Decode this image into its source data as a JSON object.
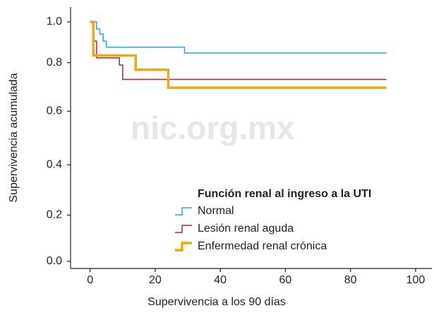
{
  "chart_data": {
    "type": "line",
    "step": "post",
    "xlabel": "Supervivencia a los 90 días",
    "ylabel": "Supervivencia acumulada",
    "watermark": "nic.org.mx",
    "legend_title": "Función renal al ingreso a la UTI",
    "legend": "lower right",
    "xlim": [
      -6,
      105
    ],
    "xticks": [
      0,
      20,
      40,
      60,
      80,
      100
    ],
    "ylim": [
      -0.03,
      1.062
    ],
    "yticks": [
      {
        "value": 1.0,
        "label": "1.0"
      },
      {
        "value": 0.83,
        "label": "0.8"
      },
      {
        "value": 0.627,
        "label": "0.6"
      },
      {
        "value": 0.403,
        "label": "0.4"
      },
      {
        "value": 0.193,
        "label": "0.2"
      },
      {
        "value": 0.0,
        "label": "0.0"
      }
    ],
    "series": [
      {
        "name": "Normal",
        "color": "#2aa6e0",
        "width": 1.5,
        "x": [
          0,
          2,
          3,
          4,
          5,
          29,
          91
        ],
        "values": [
          1.0,
          0.97,
          0.95,
          0.92,
          0.894,
          0.87,
          0.87
        ]
      },
      {
        "name": "Lesión renal aguda",
        "color": "#b22a2a",
        "width": 1.5,
        "x": [
          0,
          1,
          2,
          9,
          10,
          91
        ],
        "values": [
          1.0,
          0.92,
          0.85,
          0.82,
          0.76,
          0.76
        ]
      },
      {
        "name": "Enfermedad renal crónica",
        "color": "#f5a800",
        "width": 3.5,
        "x": [
          0,
          1,
          14,
          24,
          91
        ],
        "values": [
          1.0,
          0.86,
          0.8,
          0.725,
          0.725
        ]
      }
    ]
  }
}
